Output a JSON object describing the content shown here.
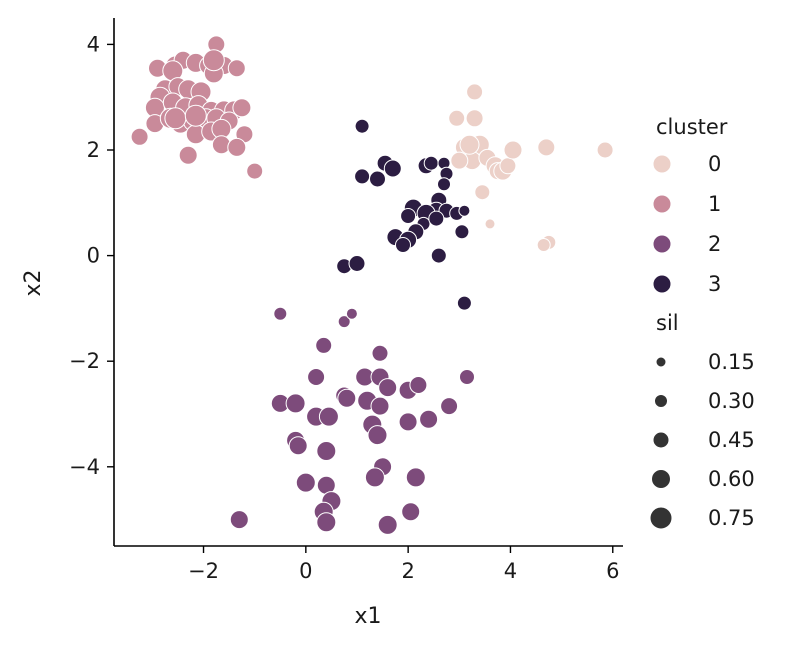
{
  "chart_data": {
    "type": "scatter",
    "title": "",
    "xlabel": "x1",
    "ylabel": "x2",
    "xlim": [
      -3.75,
      6.2
    ],
    "ylim": [
      -5.5,
      4.5
    ],
    "xticks": [
      {
        "value": -2,
        "label": "−2"
      },
      {
        "value": 0,
        "label": "0"
      },
      {
        "value": 2,
        "label": "2"
      },
      {
        "value": 4,
        "label": "4"
      },
      {
        "value": 6,
        "label": "6"
      }
    ],
    "yticks": [
      {
        "value": 4,
        "label": "4"
      },
      {
        "value": 2,
        "label": "2"
      },
      {
        "value": 0,
        "label": "0"
      },
      {
        "value": -2,
        "label": "−2"
      },
      {
        "value": -4,
        "label": "−4"
      }
    ],
    "grid": false,
    "legend": {
      "placement": "right",
      "hue_title": "cluster",
      "hue_entries": [
        {
          "label": "0",
          "color": "#ecd0c8"
        },
        {
          "label": "1",
          "color": "#c98a9a"
        },
        {
          "label": "2",
          "color": "#7d4b7b"
        },
        {
          "label": "3",
          "color": "#2c1d42"
        }
      ],
      "size_title": "sil",
      "size_entries": [
        {
          "label": "0.15",
          "value": 0.15
        },
        {
          "label": "0.30",
          "value": 0.3
        },
        {
          "label": "0.45",
          "value": 0.45
        },
        {
          "label": "0.60",
          "value": 0.6
        },
        {
          "label": "0.75",
          "value": 0.75
        }
      ],
      "size_marker_color": "#333333"
    },
    "series": [
      {
        "name": "0",
        "color": "#ecd0c8",
        "points": [
          {
            "x": 3.3,
            "y": 3.1,
            "s": 0.45
          },
          {
            "x": 2.95,
            "y": 2.6,
            "s": 0.45
          },
          {
            "x": 3.3,
            "y": 2.6,
            "s": 0.5
          },
          {
            "x": 3.1,
            "y": 2.05,
            "s": 0.55
          },
          {
            "x": 3.4,
            "y": 2.1,
            "s": 0.6
          },
          {
            "x": 3.25,
            "y": 1.8,
            "s": 0.55
          },
          {
            "x": 3.55,
            "y": 1.85,
            "s": 0.5
          },
          {
            "x": 3.7,
            "y": 1.7,
            "s": 0.55
          },
          {
            "x": 3.75,
            "y": 1.6,
            "s": 0.5
          },
          {
            "x": 3.85,
            "y": 1.6,
            "s": 0.55
          },
          {
            "x": 3.95,
            "y": 1.7,
            "s": 0.45
          },
          {
            "x": 4.05,
            "y": 2.0,
            "s": 0.55
          },
          {
            "x": 3.45,
            "y": 1.2,
            "s": 0.4
          },
          {
            "x": 3.6,
            "y": 0.6,
            "s": 0.15
          },
          {
            "x": 4.7,
            "y": 2.05,
            "s": 0.5
          },
          {
            "x": 5.85,
            "y": 2.0,
            "s": 0.45
          },
          {
            "x": 4.75,
            "y": 0.25,
            "s": 0.35
          },
          {
            "x": 4.65,
            "y": 0.2,
            "s": 0.3
          },
          {
            "x": 3.2,
            "y": 2.1,
            "s": 0.6
          },
          {
            "x": 3.0,
            "y": 1.8,
            "s": 0.5
          }
        ]
      },
      {
        "name": "1",
        "color": "#c98a9a",
        "points": [
          {
            "x": -2.9,
            "y": 3.55,
            "s": 0.55
          },
          {
            "x": -2.55,
            "y": 3.6,
            "s": 0.6
          },
          {
            "x": -2.4,
            "y": 3.7,
            "s": 0.55
          },
          {
            "x": -2.15,
            "y": 3.65,
            "s": 0.6
          },
          {
            "x": -1.9,
            "y": 3.6,
            "s": 0.55
          },
          {
            "x": -1.75,
            "y": 4.0,
            "s": 0.5
          },
          {
            "x": -1.6,
            "y": 3.6,
            "s": 0.55
          },
          {
            "x": -1.35,
            "y": 3.55,
            "s": 0.5
          },
          {
            "x": -1.8,
            "y": 3.45,
            "s": 0.6
          },
          {
            "x": -2.6,
            "y": 3.5,
            "s": 0.65
          },
          {
            "x": -2.75,
            "y": 3.15,
            "s": 0.6
          },
          {
            "x": -2.5,
            "y": 3.2,
            "s": 0.55
          },
          {
            "x": -2.3,
            "y": 3.15,
            "s": 0.6
          },
          {
            "x": -2.05,
            "y": 3.1,
            "s": 0.65
          },
          {
            "x": -2.85,
            "y": 3.0,
            "s": 0.65
          },
          {
            "x": -2.95,
            "y": 2.8,
            "s": 0.6
          },
          {
            "x": -2.6,
            "y": 2.9,
            "s": 0.6
          },
          {
            "x": -2.35,
            "y": 2.8,
            "s": 0.65
          },
          {
            "x": -2.1,
            "y": 2.85,
            "s": 0.6
          },
          {
            "x": -1.85,
            "y": 2.75,
            "s": 0.55
          },
          {
            "x": -1.6,
            "y": 2.75,
            "s": 0.6
          },
          {
            "x": -1.4,
            "y": 2.75,
            "s": 0.6
          },
          {
            "x": -1.25,
            "y": 2.8,
            "s": 0.55
          },
          {
            "x": -2.95,
            "y": 2.5,
            "s": 0.55
          },
          {
            "x": -2.65,
            "y": 2.6,
            "s": 0.65
          },
          {
            "x": -2.45,
            "y": 2.5,
            "s": 0.6
          },
          {
            "x": -2.2,
            "y": 2.55,
            "s": 0.65
          },
          {
            "x": -1.95,
            "y": 2.6,
            "s": 0.6
          },
          {
            "x": -1.75,
            "y": 2.6,
            "s": 0.6
          },
          {
            "x": -1.5,
            "y": 2.55,
            "s": 0.55
          },
          {
            "x": -3.25,
            "y": 2.25,
            "s": 0.5
          },
          {
            "x": -2.15,
            "y": 2.3,
            "s": 0.6
          },
          {
            "x": -1.85,
            "y": 2.35,
            "s": 0.6
          },
          {
            "x": -1.65,
            "y": 2.4,
            "s": 0.6
          },
          {
            "x": -1.2,
            "y": 2.3,
            "s": 0.5
          },
          {
            "x": -1.65,
            "y": 2.1,
            "s": 0.55
          },
          {
            "x": -1.35,
            "y": 2.05,
            "s": 0.55
          },
          {
            "x": -2.3,
            "y": 1.9,
            "s": 0.55
          },
          {
            "x": -1.0,
            "y": 1.6,
            "s": 0.45
          },
          {
            "x": -1.8,
            "y": 3.7,
            "s": 0.7
          },
          {
            "x": -2.55,
            "y": 2.6,
            "s": 0.7
          },
          {
            "x": -2.15,
            "y": 2.65,
            "s": 0.7
          }
        ]
      },
      {
        "name": "2",
        "color": "#7d4b7b",
        "points": [
          {
            "x": -0.5,
            "y": -1.1,
            "s": 0.3
          },
          {
            "x": 0.75,
            "y": -1.25,
            "s": 0.25
          },
          {
            "x": 0.9,
            "y": -1.1,
            "s": 0.2
          },
          {
            "x": 0.35,
            "y": -1.7,
            "s": 0.45
          },
          {
            "x": 1.45,
            "y": -1.85,
            "s": 0.45
          },
          {
            "x": 0.2,
            "y": -2.3,
            "s": 0.5
          },
          {
            "x": 1.15,
            "y": -2.3,
            "s": 0.55
          },
          {
            "x": 1.45,
            "y": -2.3,
            "s": 0.55
          },
          {
            "x": 3.15,
            "y": -2.3,
            "s": 0.4
          },
          {
            "x": 1.6,
            "y": -2.5,
            "s": 0.55
          },
          {
            "x": 2.0,
            "y": -2.55,
            "s": 0.55
          },
          {
            "x": 2.2,
            "y": -2.45,
            "s": 0.5
          },
          {
            "x": 0.75,
            "y": -2.65,
            "s": 0.5
          },
          {
            "x": 0.8,
            "y": -2.7,
            "s": 0.55
          },
          {
            "x": 1.2,
            "y": -2.75,
            "s": 0.6
          },
          {
            "x": 1.45,
            "y": -2.85,
            "s": 0.55
          },
          {
            "x": -0.5,
            "y": -2.8,
            "s": 0.55
          },
          {
            "x": -0.2,
            "y": -2.8,
            "s": 0.6
          },
          {
            "x": 2.8,
            "y": -2.85,
            "s": 0.5
          },
          {
            "x": 0.2,
            "y": -3.05,
            "s": 0.6
          },
          {
            "x": 0.45,
            "y": -3.05,
            "s": 0.6
          },
          {
            "x": 1.3,
            "y": -3.2,
            "s": 0.6
          },
          {
            "x": 2.0,
            "y": -3.15,
            "s": 0.55
          },
          {
            "x": 2.4,
            "y": -3.1,
            "s": 0.55
          },
          {
            "x": 1.4,
            "y": -3.4,
            "s": 0.6
          },
          {
            "x": -0.2,
            "y": -3.5,
            "s": 0.55
          },
          {
            "x": -0.15,
            "y": -3.6,
            "s": 0.55
          },
          {
            "x": 0.4,
            "y": -3.7,
            "s": 0.6
          },
          {
            "x": 1.5,
            "y": -4.0,
            "s": 0.55
          },
          {
            "x": 1.35,
            "y": -4.2,
            "s": 0.6
          },
          {
            "x": 2.15,
            "y": -4.2,
            "s": 0.6
          },
          {
            "x": 0.0,
            "y": -4.3,
            "s": 0.6
          },
          {
            "x": 0.4,
            "y": -4.35,
            "s": 0.55
          },
          {
            "x": 0.5,
            "y": -4.65,
            "s": 0.6
          },
          {
            "x": 0.35,
            "y": -4.85,
            "s": 0.6
          },
          {
            "x": 2.05,
            "y": -4.85,
            "s": 0.55
          },
          {
            "x": -1.3,
            "y": -5.0,
            "s": 0.55
          },
          {
            "x": 0.4,
            "y": -5.05,
            "s": 0.6
          },
          {
            "x": 1.6,
            "y": -5.1,
            "s": 0.6
          }
        ]
      },
      {
        "name": "3",
        "color": "#2c1d42",
        "points": [
          {
            "x": 1.1,
            "y": 2.45,
            "s": 0.35
          },
          {
            "x": 1.55,
            "y": 1.75,
            "s": 0.45
          },
          {
            "x": 1.7,
            "y": 1.65,
            "s": 0.5
          },
          {
            "x": 2.35,
            "y": 1.7,
            "s": 0.45
          },
          {
            "x": 2.45,
            "y": 1.75,
            "s": 0.35
          },
          {
            "x": 2.7,
            "y": 1.75,
            "s": 0.25
          },
          {
            "x": 1.1,
            "y": 1.5,
            "s": 0.4
          },
          {
            "x": 1.4,
            "y": 1.45,
            "s": 0.45
          },
          {
            "x": 2.75,
            "y": 1.55,
            "s": 0.3
          },
          {
            "x": 2.7,
            "y": 1.35,
            "s": 0.3
          },
          {
            "x": 2.6,
            "y": 1.05,
            "s": 0.45
          },
          {
            "x": 2.1,
            "y": 0.9,
            "s": 0.55
          },
          {
            "x": 2.55,
            "y": 0.85,
            "s": 0.5
          },
          {
            "x": 2.75,
            "y": 0.85,
            "s": 0.4
          },
          {
            "x": 2.95,
            "y": 0.8,
            "s": 0.35
          },
          {
            "x": 3.1,
            "y": 0.85,
            "s": 0.2
          },
          {
            "x": 2.35,
            "y": 0.8,
            "s": 0.55
          },
          {
            "x": 2.0,
            "y": 0.75,
            "s": 0.4
          },
          {
            "x": 2.3,
            "y": 0.6,
            "s": 0.3
          },
          {
            "x": 2.55,
            "y": 0.7,
            "s": 0.4
          },
          {
            "x": 3.05,
            "y": 0.45,
            "s": 0.35
          },
          {
            "x": 2.15,
            "y": 0.45,
            "s": 0.45
          },
          {
            "x": 1.75,
            "y": 0.35,
            "s": 0.5
          },
          {
            "x": 2.0,
            "y": 0.3,
            "s": 0.5
          },
          {
            "x": 1.9,
            "y": 0.2,
            "s": 0.4
          },
          {
            "x": 2.6,
            "y": 0.0,
            "s": 0.4
          },
          {
            "x": 0.75,
            "y": -0.2,
            "s": 0.4
          },
          {
            "x": 1.0,
            "y": -0.15,
            "s": 0.45
          },
          {
            "x": 3.1,
            "y": -0.9,
            "s": 0.35
          }
        ]
      }
    ]
  }
}
